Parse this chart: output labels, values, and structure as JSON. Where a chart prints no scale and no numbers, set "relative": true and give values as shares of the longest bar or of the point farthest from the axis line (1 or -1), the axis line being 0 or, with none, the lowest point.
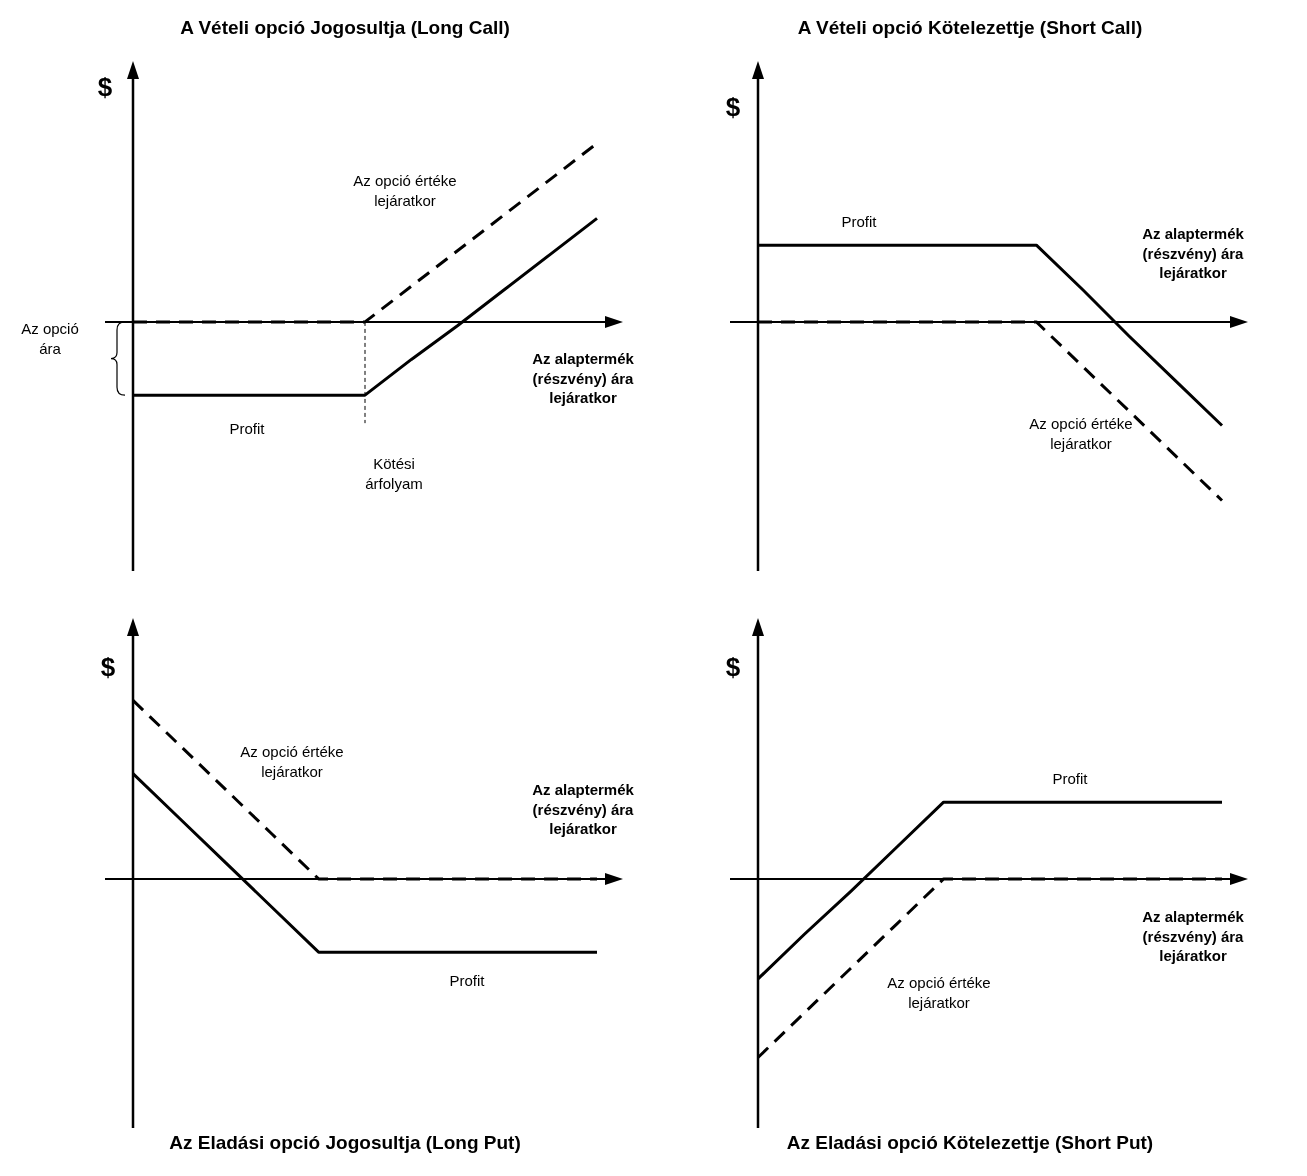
{
  "chart_data": [
    {
      "type": "line",
      "title": "A Vételi opció Jogosultja (Long Call)",
      "ylabel": "$",
      "xlabel": "Az alaptermék (részvény) ára lejáratkor",
      "relative": true,
      "tick_labels": false,
      "categories": [
        null,
        null,
        null,
        null,
        null,
        null,
        null,
        null,
        null,
        null,
        null
      ],
      "series": [
        {
          "name": "Az opció értéke lejáratkor",
          "color": "#000000",
          "line_style": "dashed",
          "values": [
            0,
            0,
            0,
            0,
            0,
            0,
            0.2,
            0.4,
            0.6,
            0.8,
            1
          ]
        },
        {
          "name": "Profit",
          "color": "#000000",
          "line_style": "solid",
          "values": [
            -0.41,
            -0.41,
            -0.41,
            -0.41,
            -0.41,
            -0.41,
            -0.21,
            -0.02,
            0.18,
            0.38,
            0.58
          ]
        }
      ],
      "annotations": [
        "Kötési árfolyam",
        "Az opció ára"
      ]
    },
    {
      "type": "line",
      "title": "A Vételi opció Kötelezettje (Short Call)",
      "ylabel": "$",
      "xlabel": "Az alaptermék (részvény) ára lejáratkor",
      "relative": true,
      "tick_labels": false,
      "categories": [
        null,
        null,
        null,
        null,
        null,
        null,
        null,
        null,
        null,
        null,
        null
      ],
      "series": [
        {
          "name": "Az opció értéke lejáratkor",
          "color": "#000000",
          "line_style": "dashed",
          "values": [
            0,
            0,
            0,
            0,
            0,
            0,
            0,
            -0.25,
            -0.5,
            -0.75,
            -1
          ]
        },
        {
          "name": "Profit",
          "color": "#000000",
          "line_style": "solid",
          "values": [
            0.43,
            0.43,
            0.43,
            0.43,
            0.43,
            0.43,
            0.43,
            0.18,
            -0.08,
            -0.33,
            -0.58
          ]
        }
      ]
    },
    {
      "type": "line",
      "title": "Az Eladási opció Jogosultja (Long Put)",
      "ylabel": "$",
      "xlabel": "Az alaptermék (részvény) ára lejáratkor",
      "relative": true,
      "tick_labels": false,
      "categories": [
        null,
        null,
        null,
        null,
        null,
        null,
        null,
        null,
        null,
        null,
        null
      ],
      "series": [
        {
          "name": "Az opció értéke lejáratkor",
          "color": "#000000",
          "line_style": "dashed",
          "values": [
            1,
            0.75,
            0.5,
            0.25,
            0,
            0,
            0,
            0,
            0,
            0,
            0
          ]
        },
        {
          "name": "Profit",
          "color": "#000000",
          "line_style": "solid",
          "values": [
            0.59,
            0.34,
            0.09,
            -0.16,
            -0.41,
            -0.41,
            -0.41,
            -0.41,
            -0.41,
            -0.41,
            -0.41
          ]
        }
      ]
    },
    {
      "type": "line",
      "title": "Az Eladási opció Kötelezettje (Short Put)",
      "ylabel": "$",
      "xlabel": "Az alaptermék (részvény) ára lejáratkor",
      "relative": true,
      "tick_labels": false,
      "categories": [
        null,
        null,
        null,
        null,
        null,
        null,
        null,
        null,
        null,
        null,
        null
      ],
      "series": [
        {
          "name": "Az opció értéke lejáratkor",
          "color": "#000000",
          "line_style": "dashed",
          "values": [
            -1,
            -0.75,
            -0.5,
            -0.25,
            0,
            0,
            0,
            0,
            0,
            0,
            0
          ]
        },
        {
          "name": "Profit",
          "color": "#000000",
          "line_style": "solid",
          "values": [
            -0.56,
            -0.31,
            -0.07,
            0.18,
            0.43,
            0.43,
            0.43,
            0.43,
            0.43,
            0.43,
            0.43
          ]
        }
      ]
    }
  ]
}
